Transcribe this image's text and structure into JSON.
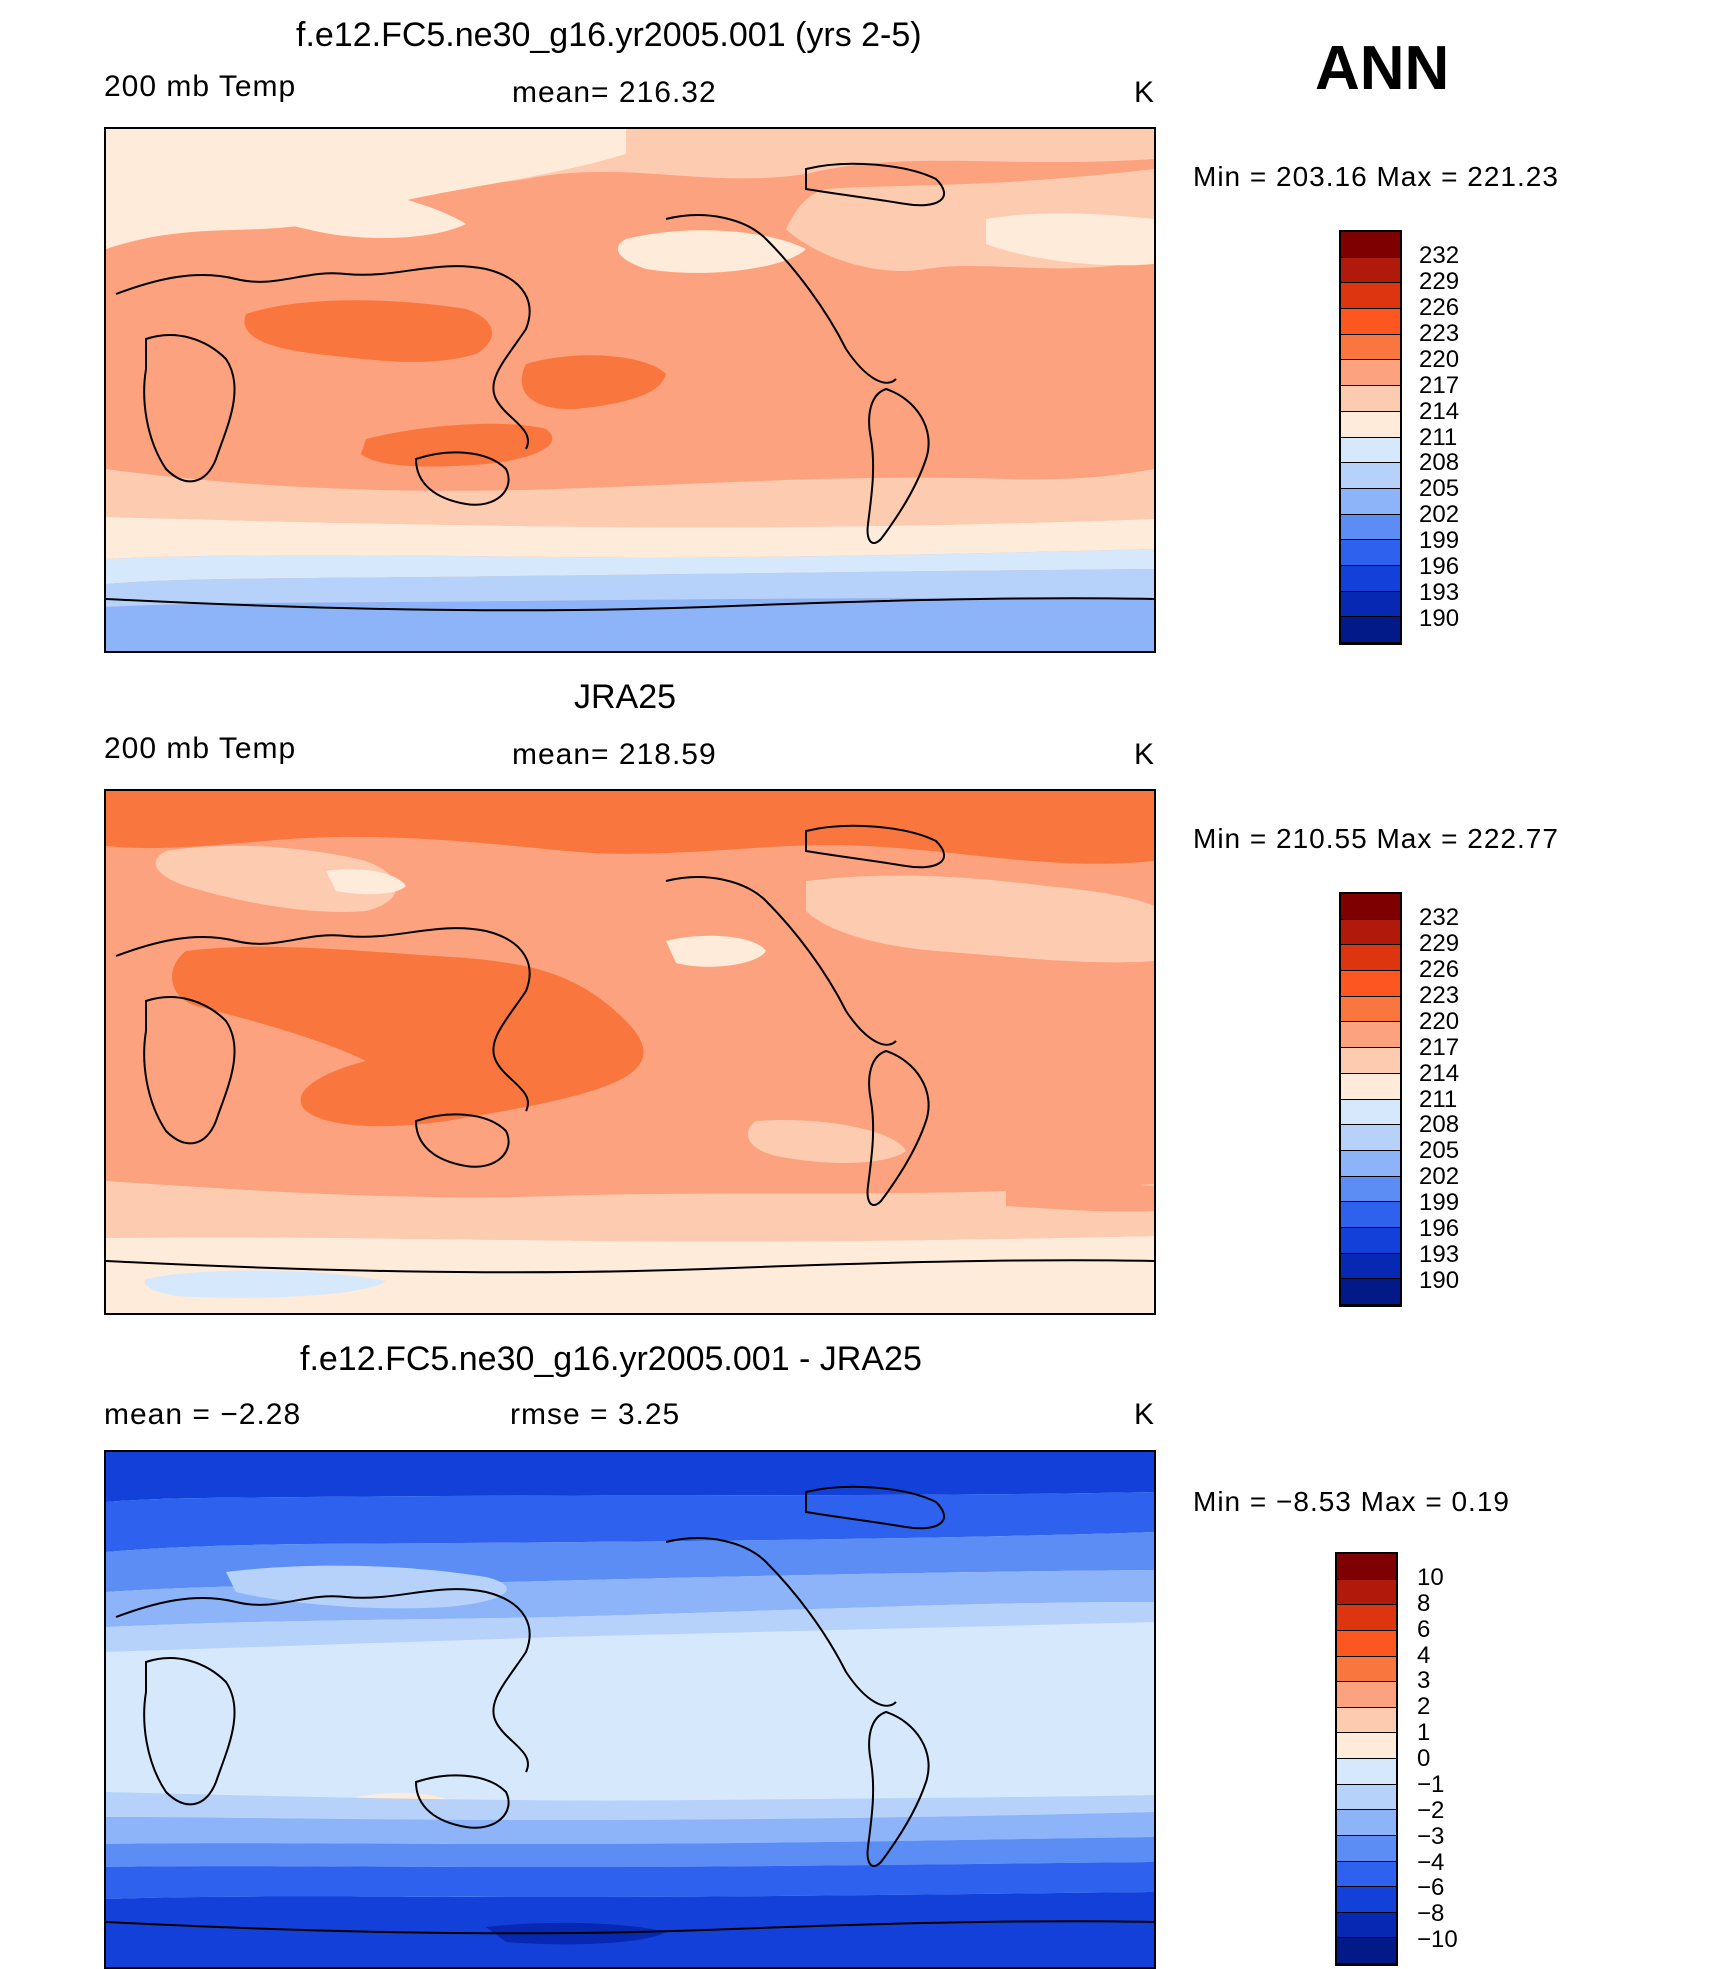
{
  "season": "ANN",
  "panels": [
    {
      "title": "f.e12.FC5.ne30_g16.yr2005.001 (yrs 2-5)",
      "left_label": "200 mb Temp",
      "center_label": "mean= 216.32",
      "unit": "K",
      "minmax": "Min = 203.16 Max = 221.23",
      "colorbar_labels": [
        "232",
        "229",
        "226",
        "223",
        "220",
        "217",
        "214",
        "211",
        "208",
        "205",
        "202",
        "199",
        "196",
        "193",
        "190"
      ]
    },
    {
      "title": "JRA25",
      "left_label": "200 mb Temp",
      "center_label": "mean= 218.59",
      "unit": "K",
      "minmax": "Min = 210.55 Max = 222.77",
      "colorbar_labels": [
        "232",
        "229",
        "226",
        "223",
        "220",
        "217",
        "214",
        "211",
        "208",
        "205",
        "202",
        "199",
        "196",
        "193",
        "190"
      ]
    },
    {
      "title": "f.e12.FC5.ne30_g16.yr2005.001 - JRA25",
      "left_label": "mean =   −2.28",
      "center_label": "rmse =    3.25",
      "unit": "K",
      "minmax": "Min =   −8.53 Max =    0.19",
      "colorbar_labels": [
        "10",
        "8",
        "6",
        "4",
        "3",
        "2",
        "1",
        "0",
        "−1",
        "−2",
        "−3",
        "−4",
        "−6",
        "−8",
        "−10"
      ]
    }
  ],
  "colors": {
    "abs_scale": [
      "#7f0000",
      "#b11a0a",
      "#dd3510",
      "#fe5621",
      "#f9773f",
      "#fda27e",
      "#fdcbb0",
      "#feebda",
      "#d6e8fc",
      "#b6d2fa",
      "#8db4f8",
      "#5b8df4",
      "#2e61ee",
      "#1240d8",
      "#0628b3",
      "#021a87"
    ],
    "diff_scale": [
      "#7f0000",
      "#b11a0a",
      "#dd3510",
      "#fe5621",
      "#f9773f",
      "#fda27e",
      "#fdcbb0",
      "#feebda",
      "#d6e8fc",
      "#b6d2fa",
      "#8db4f8",
      "#5b8df4",
      "#2e61ee",
      "#1240d8",
      "#0628b3",
      "#021a87"
    ],
    "outline": "#000000"
  }
}
